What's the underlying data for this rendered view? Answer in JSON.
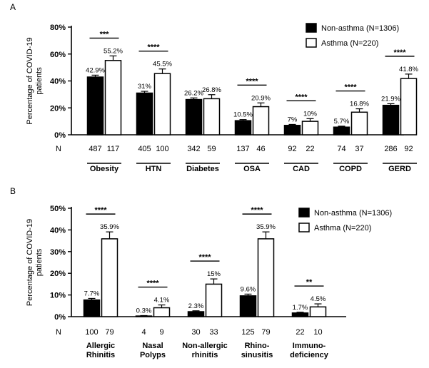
{
  "chart_data": [
    {
      "panel": "A",
      "type": "bar",
      "ylabel": "Percentage of COVID-19 patients",
      "ylim": [
        0,
        80
      ],
      "yticks": [
        "0%",
        "20%",
        "40%",
        "60%",
        "80%"
      ],
      "n_label": "N",
      "categories": [
        "Obesity",
        "HTN",
        "Diabetes",
        "OSA",
        "CAD",
        "COPD",
        "GERD"
      ],
      "series": [
        {
          "name": "Non-asthma (N=1306)",
          "color": "#000000",
          "values": [
            42.9,
            31,
            26.2,
            10.5,
            7,
            5.7,
            21.9
          ],
          "errors": [
            1.4,
            1.3,
            1.2,
            0.8,
            0.7,
            0.7,
            1.2
          ],
          "labels": [
            "42.9%",
            "31%",
            "26.2%",
            "10.5%",
            "7%",
            "5.7%",
            "21.9%"
          ],
          "n": [
            "487",
            "405",
            "342",
            "137",
            "92",
            "74",
            "286"
          ]
        },
        {
          "name": "Asthma (N=220)",
          "color": "#ffffff",
          "values": [
            55.2,
            45.5,
            26.8,
            20.9,
            10,
            16.8,
            41.8
          ],
          "errors": [
            3.4,
            3.4,
            3.0,
            2.8,
            2.0,
            2.5,
            3.3
          ],
          "labels": [
            "55.2%",
            "45.5%",
            "26.8%",
            "20.9%",
            "10%",
            "16.8%",
            "41.8%"
          ],
          "n": [
            "117",
            "100",
            "59",
            "46",
            "22",
            "37",
            "92"
          ]
        }
      ],
      "significance": [
        "***",
        "****",
        "",
        "****",
        "****",
        "****",
        "****"
      ],
      "legend": "top-right"
    },
    {
      "panel": "B",
      "type": "bar",
      "ylabel": "Percentage of COVID-19 patients",
      "ylim": [
        0,
        50
      ],
      "yticks": [
        "0%",
        "10%",
        "20%",
        "30%",
        "40%",
        "50%"
      ],
      "n_label": "N",
      "categories": [
        [
          "Allergic",
          "Rhinitis"
        ],
        [
          "Nasal",
          "Polyps"
        ],
        [
          "Non-allergic",
          "rhinitis"
        ],
        [
          "Rhino-",
          "sinusitis"
        ],
        [
          "Immuno-",
          "deficiency"
        ]
      ],
      "series": [
        {
          "name": "Non-asthma (N=1306)",
          "color": "#000000",
          "values": [
            7.7,
            0.3,
            2.3,
            9.6,
            1.7
          ],
          "errors": [
            0.7,
            0.2,
            0.4,
            0.8,
            0.35
          ],
          "labels": [
            "7.7%",
            "0.3%",
            "2.3%",
            "9.6%",
            "1.7%"
          ],
          "n": [
            "100",
            "4",
            "30",
            "125",
            "22"
          ]
        },
        {
          "name": "Asthma (N=220)",
          "color": "#ffffff",
          "values": [
            35.9,
            4.1,
            15,
            35.9,
            4.5
          ],
          "errors": [
            3.2,
            1.3,
            2.4,
            3.2,
            1.4
          ],
          "labels": [
            "35.9%",
            "4.1%",
            "15%",
            "35.9%",
            "4.5%"
          ],
          "n": [
            "79",
            "9",
            "33",
            "79",
            "10"
          ]
        }
      ],
      "significance": [
        "****",
        "****",
        "****",
        "****",
        "**"
      ],
      "legend": "top-right"
    }
  ]
}
